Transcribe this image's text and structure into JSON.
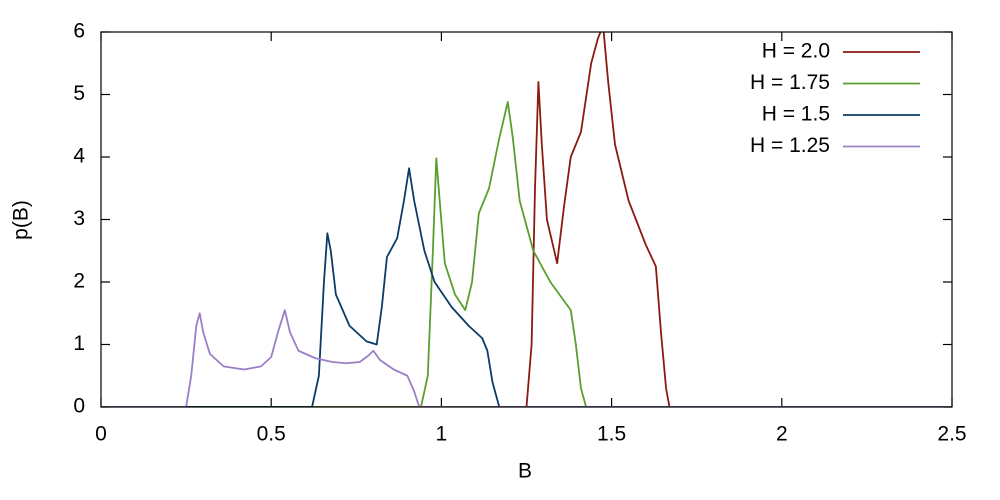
{
  "chart_data": {
    "type": "line",
    "xlabel": "B",
    "ylabel": "p(B)",
    "xlim": [
      0,
      2.5
    ],
    "xticks": [
      0,
      0.5,
      1,
      1.5,
      2,
      2.5
    ],
    "ylim": [
      0,
      6
    ],
    "yticks": [
      0,
      1,
      2,
      3,
      4,
      5,
      6
    ],
    "legend": "top-right",
    "series": [
      {
        "name": "H = 2.0",
        "color": "#8b1a10",
        "x": [
          0,
          1.25,
          1.265,
          1.275,
          1.285,
          1.295,
          1.31,
          1.34,
          1.36,
          1.38,
          1.41,
          1.44,
          1.46,
          1.475,
          1.49,
          1.51,
          1.55,
          1.6,
          1.63,
          1.645,
          1.66,
          1.67,
          2.5
        ],
        "values": [
          0,
          0,
          1.0,
          3.5,
          5.2,
          4.2,
          3.0,
          2.3,
          3.2,
          4.0,
          4.4,
          5.5,
          5.9,
          6.1,
          5.2,
          4.2,
          3.3,
          2.6,
          2.25,
          1.2,
          0.3,
          0,
          0
        ]
      },
      {
        "name": "H = 1.75",
        "color": "#5a9e30",
        "x": [
          0,
          0.94,
          0.96,
          0.975,
          0.985,
          0.995,
          1.01,
          1.04,
          1.07,
          1.09,
          1.11,
          1.14,
          1.17,
          1.195,
          1.21,
          1.23,
          1.27,
          1.32,
          1.36,
          1.38,
          1.395,
          1.41,
          1.425,
          2.5
        ],
        "values": [
          0,
          0,
          0.5,
          2.5,
          3.98,
          3.3,
          2.3,
          1.8,
          1.55,
          2.0,
          3.1,
          3.5,
          4.3,
          4.88,
          4.3,
          3.3,
          2.5,
          2.0,
          1.7,
          1.55,
          1.0,
          0.3,
          0,
          0
        ]
      },
      {
        "name": "H = 1.5",
        "color": "#0d3b66",
        "x": [
          0,
          0.62,
          0.64,
          0.655,
          0.665,
          0.675,
          0.69,
          0.73,
          0.78,
          0.81,
          0.825,
          0.84,
          0.87,
          0.89,
          0.905,
          0.92,
          0.95,
          0.98,
          1.03,
          1.08,
          1.12,
          1.135,
          1.15,
          1.17,
          2.5
        ],
        "values": [
          0,
          0,
          0.5,
          2.0,
          2.78,
          2.5,
          1.8,
          1.3,
          1.05,
          1.0,
          1.6,
          2.4,
          2.7,
          3.3,
          3.82,
          3.3,
          2.5,
          2.0,
          1.6,
          1.3,
          1.1,
          0.9,
          0.4,
          0,
          0
        ]
      },
      {
        "name": "H = 1.25",
        "color": "#9b7fc6",
        "x": [
          0,
          0.25,
          0.265,
          0.28,
          0.29,
          0.3,
          0.32,
          0.36,
          0.42,
          0.47,
          0.5,
          0.52,
          0.54,
          0.555,
          0.58,
          0.63,
          0.68,
          0.72,
          0.76,
          0.785,
          0.8,
          0.82,
          0.86,
          0.9,
          0.92,
          0.935,
          2.5
        ],
        "values": [
          0,
          0,
          0.5,
          1.3,
          1.5,
          1.2,
          0.85,
          0.65,
          0.6,
          0.65,
          0.8,
          1.2,
          1.55,
          1.2,
          0.9,
          0.78,
          0.72,
          0.7,
          0.72,
          0.82,
          0.9,
          0.75,
          0.6,
          0.5,
          0.25,
          0,
          0
        ]
      }
    ]
  }
}
